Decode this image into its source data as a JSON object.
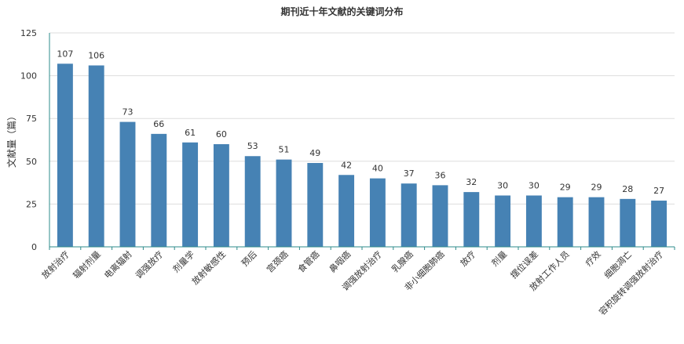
{
  "chart_data": {
    "type": "bar",
    "title": "期刊近十年文献的关键词分布",
    "xlabel": "",
    "ylabel": "文献量（篇）",
    "ylim": [
      0,
      125
    ],
    "yticks": [
      0,
      25,
      50,
      75,
      100,
      125
    ],
    "grid": true,
    "bar_color": "#4682b4",
    "categories": [
      "放射治疗",
      "辐射剂量",
      "电离辐射",
      "调强放疗",
      "剂量学",
      "放射敏感性",
      "预后",
      "宫颈癌",
      "食管癌",
      "鼻咽癌",
      "调强放射治疗",
      "乳腺癌",
      "非小细胞肺癌",
      "放疗",
      "剂量",
      "摆位误差",
      "放射工作人员",
      "疗效",
      "细胞凋亡",
      "容积旋转调强放射治疗"
    ],
    "values": [
      107,
      106,
      73,
      66,
      61,
      60,
      53,
      51,
      49,
      42,
      40,
      37,
      36,
      32,
      30,
      30,
      29,
      29,
      28,
      27
    ]
  }
}
